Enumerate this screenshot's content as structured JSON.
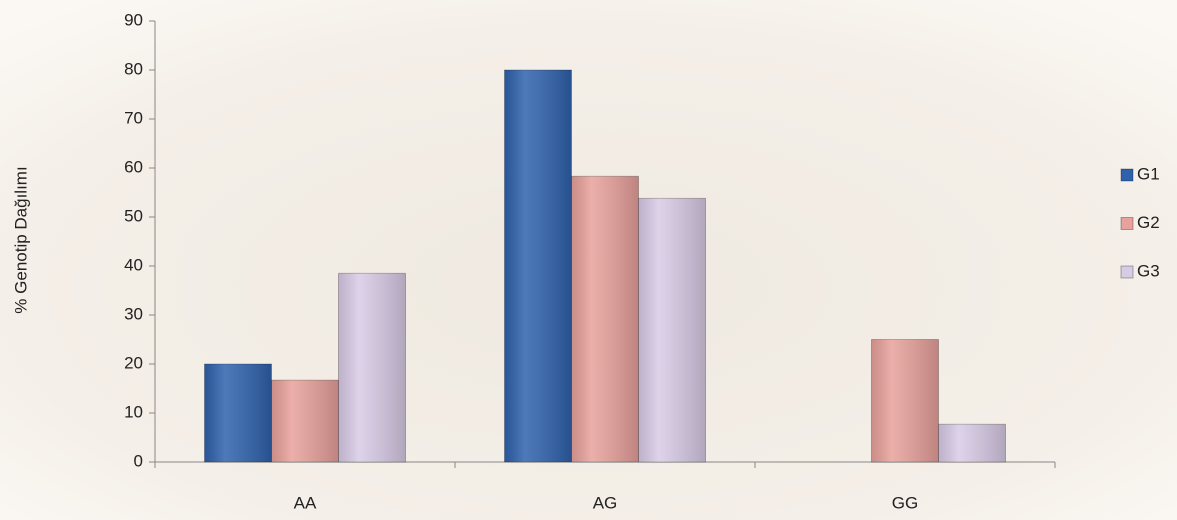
{
  "chart_data": {
    "type": "bar",
    "y_label": "% Genotip Dağılımı",
    "categories": [
      "AA",
      "AG",
      "GG"
    ],
    "series": [
      {
        "name": "G1",
        "color": "#2f62ad",
        "values": [
          20,
          80,
          0
        ]
      },
      {
        "name": "G2",
        "color": "#e8a19b",
        "values": [
          16.7,
          58.3,
          25
        ]
      },
      {
        "name": "G3",
        "color": "#d8cbe6",
        "values": [
          38.5,
          53.8,
          7.7
        ]
      }
    ],
    "ylim": [
      0,
      90
    ],
    "yticks": [
      0,
      10,
      20,
      30,
      40,
      50,
      60,
      70,
      80,
      90
    ],
    "legend": "right"
  }
}
